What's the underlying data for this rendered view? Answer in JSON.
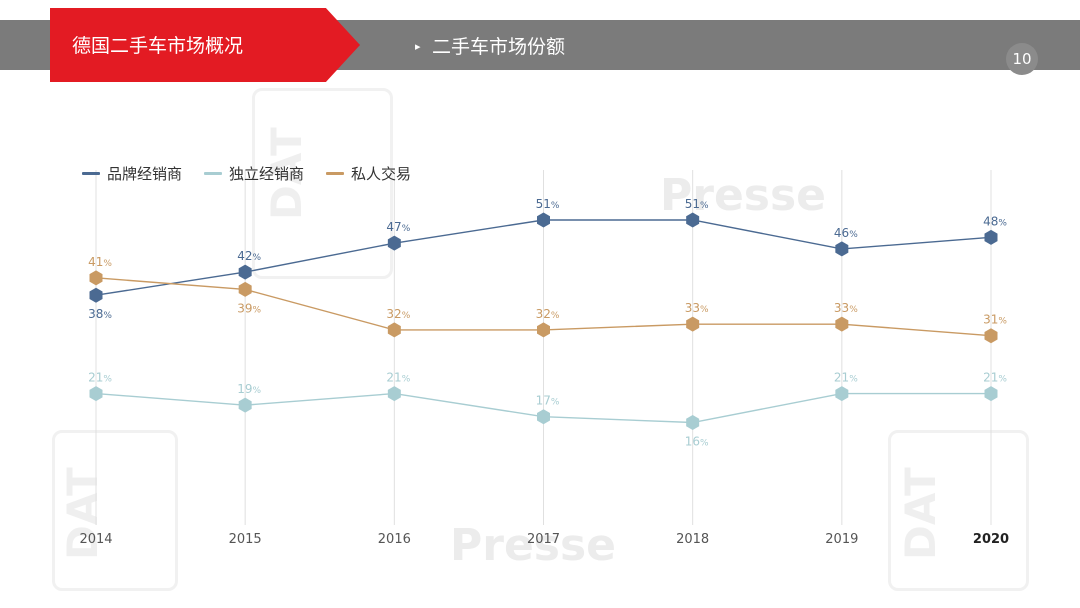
{
  "header": {
    "title": "德国二手车市场概况",
    "section_arrow": "▸",
    "section_title": "二手车市场份额",
    "page_number": "10"
  },
  "watermarks": {
    "presse": "Presse",
    "dat": "DAT"
  },
  "colors": {
    "accent_red": "#e31b23",
    "header_gray": "#7b7b7b",
    "brand_dealer": "#4b6a92",
    "independent_dealer": "#a8cdd2",
    "private_trade": "#c99a63",
    "grid": "#e0e0e0",
    "axis_text": "#555555"
  },
  "chart_data": {
    "type": "line",
    "title": "",
    "xlabel": "",
    "ylabel": "",
    "x": [
      "2014",
      "2015",
      "2016",
      "2017",
      "2018",
      "2019",
      "2020"
    ],
    "highlight_x": "2020",
    "ylim": [
      10,
      55
    ],
    "value_suffix": "%",
    "legend_position": "top-left",
    "series": [
      {
        "name": "品牌经销商",
        "values": [
          38,
          42,
          47,
          51,
          51,
          46,
          48
        ],
        "color": "#4b6a92",
        "label_position": [
          "below",
          "above",
          "above",
          "above",
          "above",
          "above",
          "above"
        ]
      },
      {
        "name": "独立经销商",
        "values": [
          21,
          19,
          21,
          17,
          16,
          21,
          21
        ],
        "color": "#a8cdd2",
        "label_position": [
          "above",
          "above",
          "above",
          "above",
          "below",
          "above",
          "above"
        ]
      },
      {
        "name": "私人交易",
        "values": [
          41,
          39,
          32,
          32,
          33,
          33,
          31
        ],
        "color": "#c99a63",
        "label_position": [
          "above",
          "below",
          "above",
          "above",
          "above",
          "above",
          "above"
        ]
      }
    ]
  }
}
